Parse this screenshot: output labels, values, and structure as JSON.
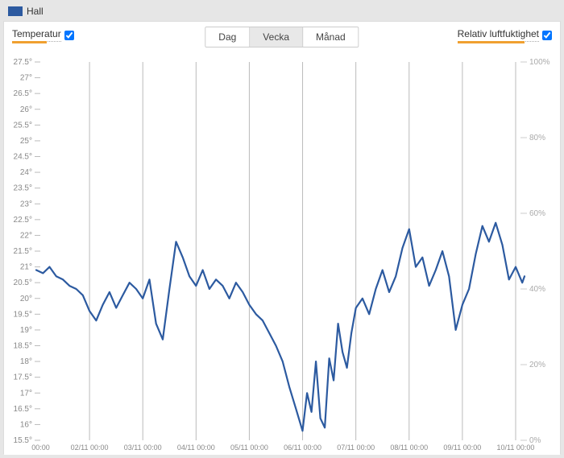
{
  "legend": {
    "label": "Hall",
    "color": "#2c5aa0"
  },
  "toggles": {
    "left": {
      "label": "Temperatur",
      "checked": true,
      "underline_color": "#f0a030"
    },
    "right": {
      "label": "Relativ luftfuktighet",
      "checked": true,
      "underline_color": "#f0a030"
    }
  },
  "periods": {
    "items": [
      {
        "label": "Dag",
        "active": false
      },
      {
        "label": "Vecka",
        "active": true
      },
      {
        "label": "Månad",
        "active": false
      }
    ]
  },
  "chart": {
    "type": "line",
    "background": "#ffffff",
    "grid_color": "#bbbbbb",
    "line_color": "#2c5aa0",
    "line_width": 2.2,
    "y_left": {
      "min": 15.5,
      "max": 27.5,
      "step": 0.5,
      "suffix": "°",
      "tick_color": "#bbbbbb",
      "label_color": "#888888"
    },
    "y_right": {
      "min": 0,
      "max": 100,
      "step": 20,
      "suffix": "%",
      "tick_color": "#cccccc",
      "label_color": "#aaaaaa"
    },
    "x": {
      "min": 0,
      "max": 220,
      "grid_at": [
        24,
        48,
        72,
        96,
        120,
        144,
        168,
        192,
        216
      ],
      "labels": [
        {
          "v": 2,
          "t": "00:00"
        },
        {
          "v": 24,
          "t": "02/11 00:00"
        },
        {
          "v": 48,
          "t": "03/11 00:00"
        },
        {
          "v": 72,
          "t": "04/11 00:00"
        },
        {
          "v": 96,
          "t": "05/11 00:00"
        },
        {
          "v": 120,
          "t": "06/11 00:00"
        },
        {
          "v": 144,
          "t": "07/11 00:00"
        },
        {
          "v": 168,
          "t": "08/11 00:00"
        },
        {
          "v": 192,
          "t": "09/11 00:00"
        },
        {
          "v": 216,
          "t": "10/11 00:00"
        }
      ]
    },
    "series": [
      [
        0,
        20.9
      ],
      [
        3,
        20.8
      ],
      [
        6,
        21.0
      ],
      [
        9,
        20.7
      ],
      [
        12,
        20.6
      ],
      [
        15,
        20.4
      ],
      [
        18,
        20.3
      ],
      [
        21,
        20.1
      ],
      [
        24,
        19.6
      ],
      [
        27,
        19.3
      ],
      [
        30,
        19.8
      ],
      [
        33,
        20.2
      ],
      [
        36,
        19.7
      ],
      [
        39,
        20.1
      ],
      [
        42,
        20.5
      ],
      [
        45,
        20.3
      ],
      [
        48,
        20.0
      ],
      [
        51,
        20.6
      ],
      [
        54,
        19.2
      ],
      [
        57,
        18.7
      ],
      [
        60,
        20.3
      ],
      [
        63,
        21.8
      ],
      [
        66,
        21.3
      ],
      [
        69,
        20.7
      ],
      [
        72,
        20.4
      ],
      [
        75,
        20.9
      ],
      [
        78,
        20.3
      ],
      [
        81,
        20.6
      ],
      [
        84,
        20.4
      ],
      [
        87,
        20.0
      ],
      [
        90,
        20.5
      ],
      [
        93,
        20.2
      ],
      [
        96,
        19.8
      ],
      [
        99,
        19.5
      ],
      [
        102,
        19.3
      ],
      [
        105,
        18.9
      ],
      [
        108,
        18.5
      ],
      [
        111,
        18.0
      ],
      [
        114,
        17.2
      ],
      [
        117,
        16.5
      ],
      [
        120,
        15.8
      ],
      [
        122,
        17.0
      ],
      [
        124,
        16.4
      ],
      [
        126,
        18.0
      ],
      [
        128,
        16.2
      ],
      [
        130,
        15.9
      ],
      [
        132,
        18.1
      ],
      [
        134,
        17.4
      ],
      [
        136,
        19.2
      ],
      [
        138,
        18.3
      ],
      [
        140,
        17.8
      ],
      [
        142,
        18.9
      ],
      [
        144,
        19.7
      ],
      [
        147,
        20.0
      ],
      [
        150,
        19.5
      ],
      [
        153,
        20.3
      ],
      [
        156,
        20.9
      ],
      [
        159,
        20.2
      ],
      [
        162,
        20.7
      ],
      [
        165,
        21.6
      ],
      [
        168,
        22.2
      ],
      [
        171,
        21.0
      ],
      [
        174,
        21.3
      ],
      [
        177,
        20.4
      ],
      [
        180,
        20.9
      ],
      [
        183,
        21.5
      ],
      [
        186,
        20.7
      ],
      [
        189,
        19.0
      ],
      [
        192,
        19.8
      ],
      [
        195,
        20.3
      ],
      [
        198,
        21.4
      ],
      [
        201,
        22.3
      ],
      [
        204,
        21.8
      ],
      [
        207,
        22.4
      ],
      [
        210,
        21.7
      ],
      [
        213,
        20.6
      ],
      [
        216,
        21.0
      ],
      [
        219,
        20.5
      ],
      [
        220,
        20.7
      ]
    ]
  }
}
